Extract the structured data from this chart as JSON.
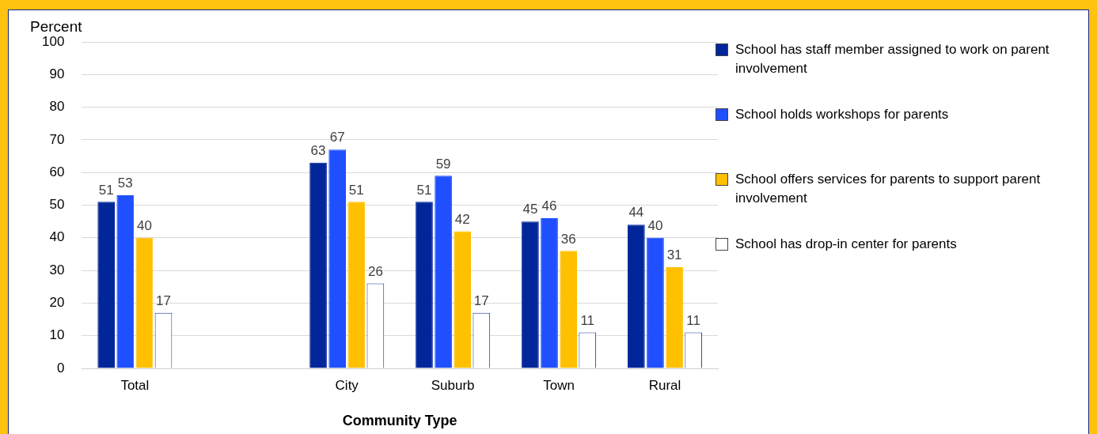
{
  "chart_data": {
    "type": "bar",
    "ylabel": "Percent",
    "xlabel": "Community Type",
    "categories": [
      "Total",
      null,
      "City",
      "Suburb",
      "Town",
      "Rural"
    ],
    "series": [
      {
        "name": "School has staff member assigned to work on parent involvement",
        "color": "#00269a",
        "values": [
          51,
          null,
          63,
          51,
          45,
          44
        ]
      },
      {
        "name": "School holds workshops for parents",
        "color": "#1f4fff",
        "values": [
          53,
          null,
          67,
          59,
          46,
          40
        ]
      },
      {
        "name": "School offers services for parents to support parent involvement",
        "color": "#ffc000",
        "values": [
          40,
          null,
          51,
          42,
          36,
          31
        ]
      },
      {
        "name": "School has drop-in center for parents",
        "color": "#ffffff",
        "values": [
          17,
          null,
          26,
          17,
          11,
          11
        ]
      }
    ],
    "ylim": [
      0,
      100
    ],
    "yticks": [
      0,
      10,
      20,
      30,
      40,
      50,
      60,
      70,
      80,
      90,
      100
    ],
    "grid": "y",
    "data_labels": true,
    "legend": "top right"
  }
}
